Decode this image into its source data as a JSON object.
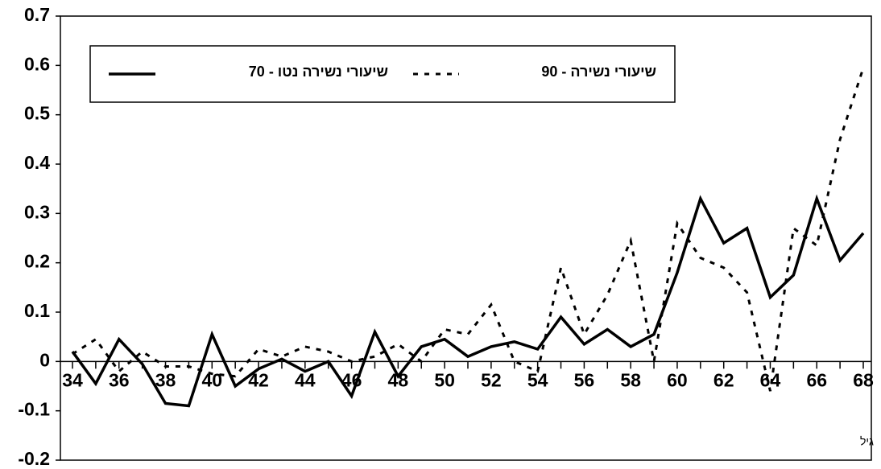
{
  "chart_data": {
    "type": "line",
    "x_label": "גיל",
    "x": [
      34,
      35,
      36,
      37,
      38,
      39,
      40,
      41,
      42,
      43,
      44,
      45,
      46,
      47,
      48,
      49,
      50,
      51,
      52,
      53,
      54,
      55,
      56,
      57,
      58,
      59,
      60,
      61,
      62,
      63,
      64,
      65,
      66,
      67,
      68
    ],
    "xlim": [
      34,
      68
    ],
    "xticks": [
      34,
      36,
      38,
      40,
      42,
      44,
      46,
      48,
      50,
      52,
      54,
      56,
      58,
      60,
      62,
      64,
      66,
      68
    ],
    "ylim": [
      -0.2,
      0.7
    ],
    "yticks": [
      0.7,
      0.6,
      0.5,
      0.4,
      0.3,
      0.2,
      0.1,
      0,
      -0.1,
      -0.2
    ],
    "series": [
      {
        "name": "שיעורי נשירה נטו - 70",
        "color": "#000000",
        "dash": "solid",
        "values": [
          0.02,
          -0.045,
          0.045,
          -0.005,
          -0.085,
          -0.09,
          0.055,
          -0.05,
          -0.015,
          0.005,
          -0.02,
          0.0,
          -0.07,
          0.06,
          -0.03,
          0.03,
          0.045,
          0.01,
          0.03,
          0.04,
          0.025,
          0.09,
          0.035,
          0.065,
          0.03,
          0.055,
          0.18,
          0.33,
          0.24,
          0.27,
          0.13,
          0.175,
          0.33,
          0.205,
          0.26
        ]
      },
      {
        "name": "שיעורי נשירה - 90",
        "color": "#000000",
        "dash": "dotted",
        "values": [
          0.015,
          0.045,
          -0.02,
          0.02,
          -0.01,
          -0.01,
          -0.025,
          -0.03,
          0.025,
          0.01,
          0.03,
          0.02,
          0.0,
          0.01,
          0.035,
          0.0,
          0.065,
          0.055,
          0.115,
          0.0,
          -0.02,
          0.19,
          0.055,
          0.135,
          0.245,
          0.0,
          0.28,
          0.21,
          0.19,
          0.14,
          -0.06,
          0.27,
          0.235,
          0.45,
          0.595
        ]
      }
    ]
  }
}
